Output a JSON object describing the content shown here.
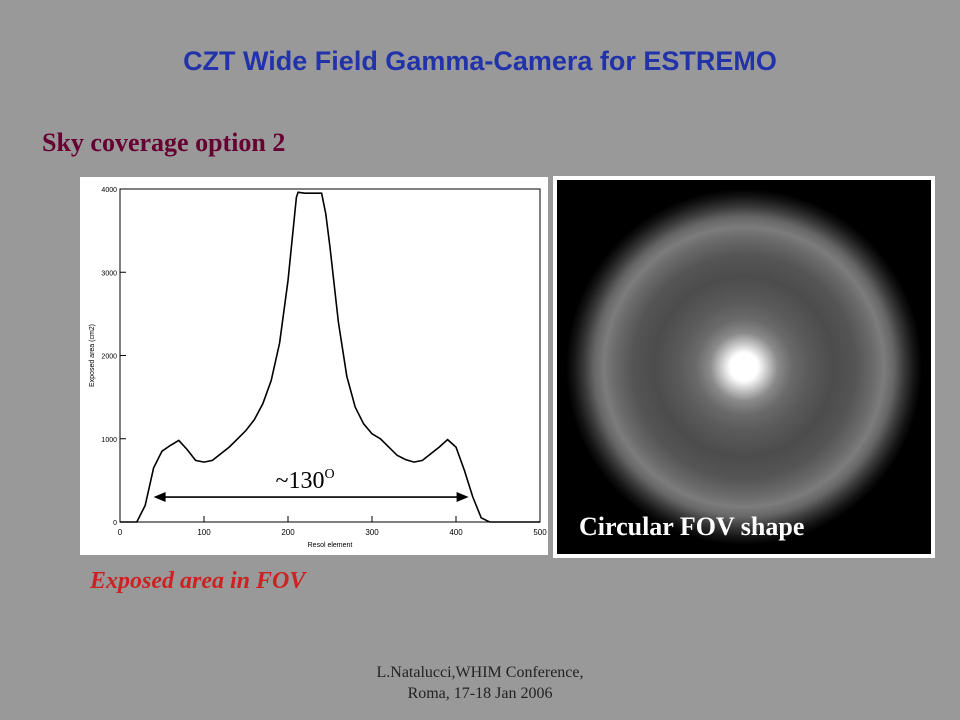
{
  "colors": {
    "title": "#2233aa",
    "subtitle": "#660033",
    "caption": "#cc2222",
    "background": "#999999"
  },
  "slide": {
    "title": "CZT Wide Field Gamma-Camera for ESTREMO",
    "subtitle": "Sky coverage option 2",
    "caption": "Exposed area in FOV",
    "fov_label": "Circular FOV shape",
    "footer_line1": "L.Natalucci,WHIM Conference,",
    "footer_line2": "Roma, 17-18 Jan 2006"
  },
  "chart_data": {
    "type": "line",
    "title": "",
    "xlabel": "Resol element",
    "ylabel": "Exposed area (cm2)",
    "xlim": [
      0,
      500
    ],
    "ylim": [
      0,
      4000
    ],
    "xticks": [
      0,
      100,
      200,
      300,
      400,
      500
    ],
    "yticks": [
      0,
      1000,
      2000,
      3000,
      4000
    ],
    "grid": false,
    "series": [
      {
        "x": [
          0,
          20,
          30,
          40,
          50,
          60,
          70,
          80,
          90,
          100,
          110,
          120,
          130,
          140,
          150,
          160,
          170,
          180,
          190,
          200,
          205,
          210,
          212,
          220,
          230,
          240,
          245,
          250,
          260,
          270,
          280,
          290,
          300,
          310,
          320,
          330,
          340,
          350,
          360,
          370,
          380,
          390,
          400,
          410,
          420,
          430,
          440,
          460,
          500
        ],
        "y": [
          0,
          0,
          200,
          650,
          850,
          920,
          980,
          870,
          740,
          720,
          740,
          820,
          900,
          1000,
          1100,
          1230,
          1420,
          1700,
          2150,
          2900,
          3400,
          3900,
          3960,
          3950,
          3950,
          3950,
          3700,
          3300,
          2400,
          1750,
          1380,
          1180,
          1060,
          1000,
          900,
          800,
          750,
          720,
          740,
          820,
          900,
          990,
          900,
          620,
          300,
          50,
          0,
          0,
          0
        ]
      }
    ],
    "annotations": [
      {
        "text": "~130",
        "superscript": "O",
        "x_start": 40,
        "x_end": 415,
        "y": 300
      }
    ]
  }
}
